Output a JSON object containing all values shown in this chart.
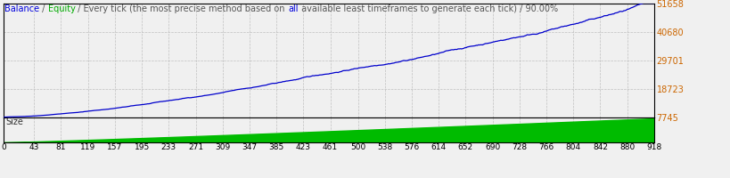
{
  "title_parts": [
    {
      "text": "Balance",
      "color": "#0000DD"
    },
    {
      "text": " / ",
      "color": "#555555"
    },
    {
      "text": "Equity",
      "color": "#00AA00"
    },
    {
      "text": " / Every tick (the most precise method based on ",
      "color": "#555555"
    },
    {
      "text": "all",
      "color": "#0000DD"
    },
    {
      "text": " available least timeframes to generate each tick)",
      "color": "#555555"
    },
    {
      "text": " / 90.00%",
      "color": "#555555"
    }
  ],
  "size_label": "Size",
  "background_color": "#F0F0F0",
  "plot_bg_color": "#F0F0F0",
  "grid_color": "#BBBBBB",
  "balance_color": "#0000CC",
  "size_fill_color": "#00BB00",
  "x_ticks": [
    0,
    43,
    81,
    119,
    157,
    195,
    233,
    271,
    309,
    347,
    385,
    423,
    461,
    500,
    538,
    576,
    614,
    652,
    690,
    728,
    766,
    804,
    842,
    880,
    918
  ],
  "y_ticks_main": [
    7745,
    18723,
    29701,
    40680,
    51658
  ],
  "y_min_main": 7745,
  "y_max_main": 51658,
  "x_min": 0,
  "x_max": 918,
  "n_points": 919,
  "ytick_color": "#CC6600"
}
